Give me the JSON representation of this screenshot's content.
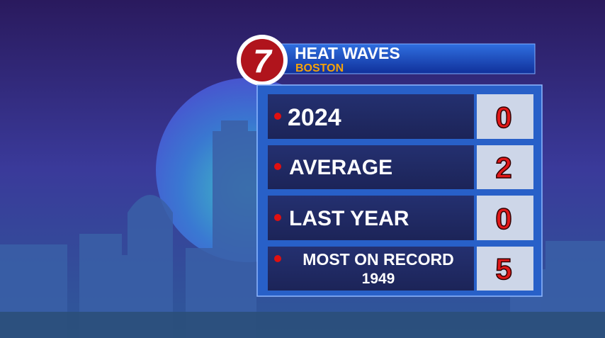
{
  "header": {
    "logo": "7",
    "title": "HEAT WAVES",
    "subtitle": "BOSTON"
  },
  "table": {
    "rows": [
      {
        "label": "2024",
        "value": 0
      },
      {
        "label": "AVERAGE",
        "value": 2
      },
      {
        "label": "LAST YEAR",
        "value": 0
      },
      {
        "label": "MOST ON RECORD",
        "sublabel": "1949",
        "value": 5
      }
    ]
  }
}
